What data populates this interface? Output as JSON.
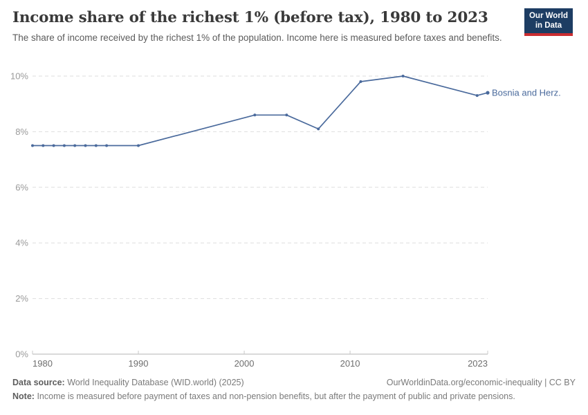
{
  "header": {
    "title": "Income share of the richest 1% (before tax), 1980 to 2023",
    "subtitle": "The share of income received by the richest 1% of the population. Income here is measured before taxes and benefits.",
    "logo": {
      "line1": "Our World",
      "line2": "in Data"
    }
  },
  "colors": {
    "series_blue": "#4a6a9c",
    "logo_navy": "#1d3d63",
    "logo_red": "#cb2d30",
    "gridline": "#dedede",
    "axis_line": "#b3b3b3"
  },
  "chart_data": {
    "type": "line",
    "title": "Income share of the richest 1% (before tax), 1980 to 2023",
    "xlabel": "",
    "ylabel": "",
    "xlim": [
      1980,
      2023
    ],
    "ylim": [
      0,
      10
    ],
    "grid": "horizontal-dashed",
    "legend_position": "end-of-line",
    "series": [
      {
        "name": "Bosnia and Herz.",
        "color": "#4a6a9c",
        "points": [
          [
            1980,
            7.5
          ],
          [
            1981,
            7.5
          ],
          [
            1982,
            7.5
          ],
          [
            1983,
            7.5
          ],
          [
            1984,
            7.5
          ],
          [
            1985,
            7.5
          ],
          [
            1986,
            7.5
          ],
          [
            1987,
            7.5
          ],
          [
            1990,
            7.5
          ],
          [
            2001,
            8.6
          ],
          [
            2004,
            8.6
          ],
          [
            2007,
            8.1
          ],
          [
            2011,
            9.8
          ],
          [
            2015,
            10.0
          ],
          [
            2022,
            9.3
          ],
          [
            2023,
            9.4
          ]
        ]
      }
    ],
    "x_ticks": [
      {
        "year": 1980,
        "label": "1980",
        "align": "start"
      },
      {
        "year": 1990,
        "label": "1990",
        "align": "middle"
      },
      {
        "year": 2000,
        "label": "2000",
        "align": "middle"
      },
      {
        "year": 2010,
        "label": "2010",
        "align": "middle"
      },
      {
        "year": 2023,
        "label": "2023",
        "align": "end"
      }
    ],
    "y_ticks": [
      {
        "value": 0,
        "label": "0%"
      },
      {
        "value": 2,
        "label": "2%"
      },
      {
        "value": 4,
        "label": "4%"
      },
      {
        "value": 6,
        "label": "6%"
      },
      {
        "value": 8,
        "label": "8%"
      },
      {
        "value": 10,
        "label": "10%"
      }
    ]
  },
  "footer": {
    "datasource_label": "Data source:",
    "datasource_value": "World Inequality Database (WID.world) (2025)",
    "rights": "OurWorldinData.org/economic-inequality | CC BY",
    "note_label": "Note:",
    "note_value": "Income is measured before payment of taxes and non-pension benefits, but after the payment of public and private pensions."
  }
}
